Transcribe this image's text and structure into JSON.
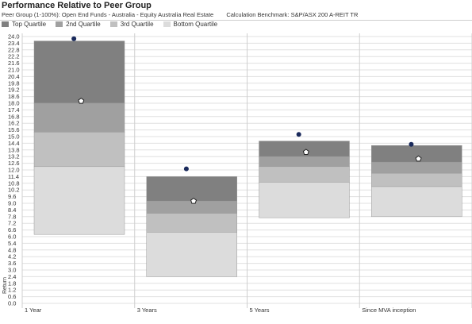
{
  "header": {
    "title": "Performance Relative to Peer Group",
    "peer_group": "Peer Group (1-100%): Open End Funds - Australia - Equity Australia Real Estate",
    "benchmark": "Calculation Benchmark: S&P/ASX 200 A-REIT TR"
  },
  "chart_data": {
    "type": "floating-bar",
    "title": "Performance Relative to Peer Group",
    "ylabel": "Return",
    "ylim": [
      0,
      24
    ],
    "ytick_step": 0.6,
    "grid": true,
    "legend_position": "top-left",
    "legend": [
      {
        "name": "Top Quartile",
        "color": "#808080"
      },
      {
        "name": "2nd Quartile",
        "color": "#a0a0a0"
      },
      {
        "name": "3rd Quartile",
        "color": "#c0c0c0"
      },
      {
        "name": "Bottom Quartile",
        "color": "#dcdcdc"
      }
    ],
    "categories": [
      "1 Year",
      "3 Years",
      "5 Years",
      "Since MVA inception"
    ],
    "quartile_bounds": [
      [
        23.6,
        18.0,
        15.4,
        12.3,
        6.2
      ],
      [
        11.4,
        9.2,
        8.1,
        6.4,
        2.4
      ],
      [
        14.6,
        13.2,
        12.3,
        10.9,
        7.7
      ],
      [
        14.2,
        12.7,
        11.7,
        10.5,
        7.8
      ]
    ],
    "fund_returns": [
      23.8,
      12.1,
      15.2,
      14.3
    ],
    "benchmark_returns": [
      18.2,
      9.2,
      13.6,
      13.0
    ],
    "colors": {
      "fund_marker": "#1a2a5c",
      "benchmark_marker": "#ffffff",
      "grid": "#e0e0e0"
    }
  }
}
